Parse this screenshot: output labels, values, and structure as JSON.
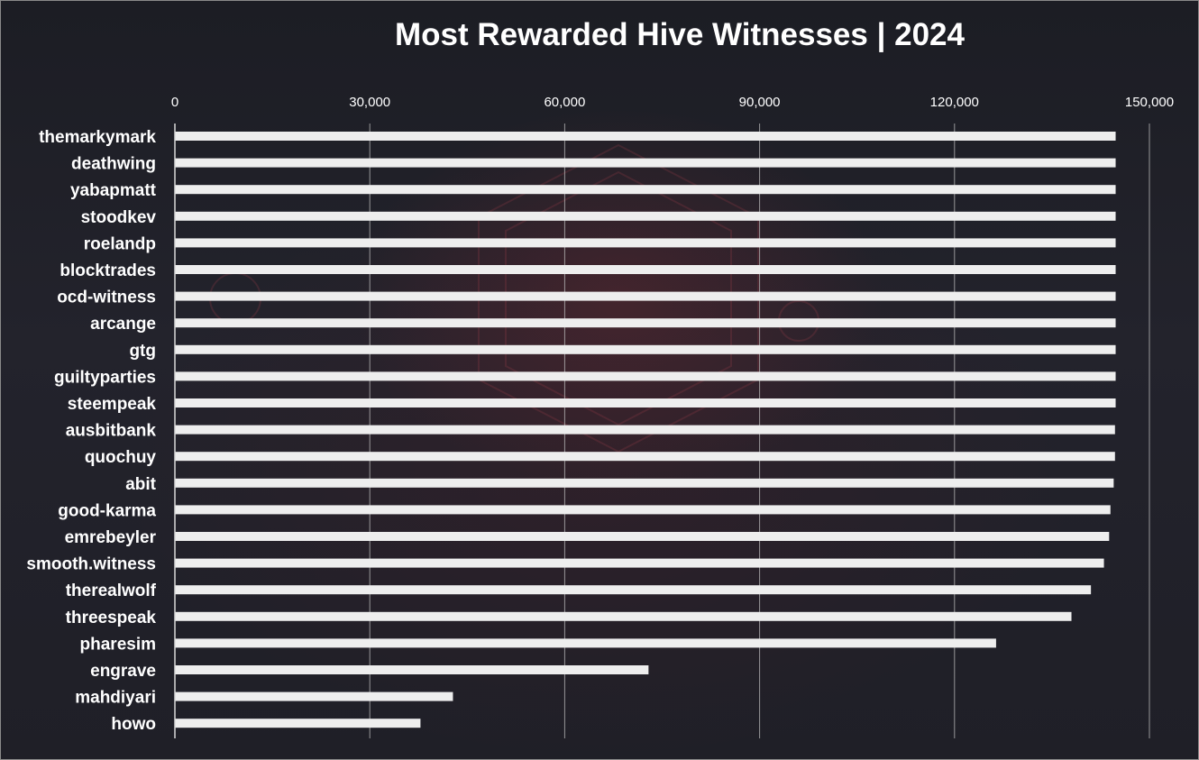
{
  "chart_data": {
    "type": "bar",
    "orientation": "horizontal",
    "title": "Most Rewarded Hive Witnesses | 2024",
    "xlabel": "",
    "ylabel": "",
    "xlim": [
      0,
      150000
    ],
    "x_ticks": [
      0,
      30000,
      60000,
      90000,
      120000,
      150000
    ],
    "x_tick_labels": [
      "0",
      "30,000",
      "60,000",
      "90,000",
      "120,000",
      "150,000"
    ],
    "x_axis_position": "top",
    "grid": true,
    "bar_color": "#eeeeee",
    "categories": [
      "themarkymark",
      "deathwing",
      "yabapmatt",
      "stoodkev",
      "roelandp",
      "blocktrades",
      "ocd-witness",
      "arcange",
      "gtg",
      "guiltyparties",
      "steempeak",
      "ausbitbank",
      "quochuy",
      "abit",
      "good-karma",
      "emrebeyler",
      "smooth.witness",
      "therealwolf",
      "threespeak",
      "pharesim",
      "engrave",
      "mahdiyari",
      "howo"
    ],
    "values": [
      144800,
      144800,
      144800,
      144800,
      144800,
      144800,
      144800,
      144800,
      144800,
      144800,
      144800,
      144700,
      144700,
      144500,
      144000,
      143800,
      143000,
      141000,
      138000,
      126400,
      72900,
      42800,
      37800
    ]
  }
}
